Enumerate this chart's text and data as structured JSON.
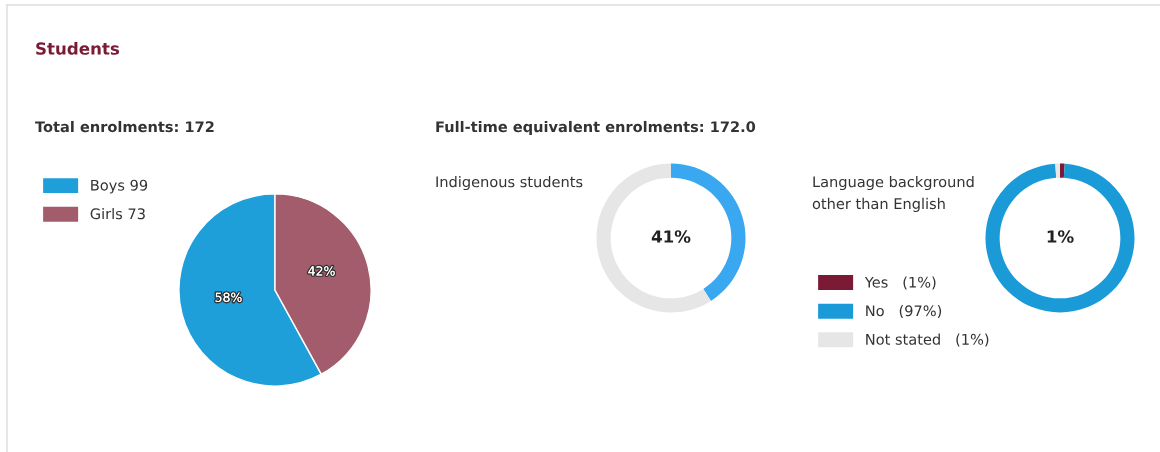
{
  "chart_data": [
    {
      "type": "pie",
      "title": "Total enrolments: 172",
      "annotations": [
        "Students"
      ],
      "categories": [
        "Boys 99",
        "Girls 73"
      ],
      "values": [
        58,
        42
      ],
      "colors": [
        "#1e9fd9",
        "#a25c6b"
      ],
      "value_labels": [
        "58%",
        "42%"
      ],
      "legend": "top left"
    },
    {
      "type": "donut",
      "title": "Full-time equivalent enrolments: 172.0",
      "subtitle": "Indigenous students",
      "categories": [
        null,
        null
      ],
      "values": [
        41,
        59
      ],
      "colors": [
        "#3aa8f0",
        "#e6e6e6"
      ],
      "value_labels": [
        "41%",
        null
      ]
    },
    {
      "type": "donut",
      "title": "Language background other than English",
      "categories": [
        "Yes",
        "No",
        "Not stated"
      ],
      "values": [
        1,
        97,
        1
      ],
      "colors": [
        "#7a1a35",
        "#1a9ad6",
        "#e6e6e6"
      ],
      "value_labels": [
        "(1%)",
        "(97%)",
        "(1%)"
      ],
      "annotations": [
        "1%"
      ],
      "legend": "bottom left"
    }
  ]
}
